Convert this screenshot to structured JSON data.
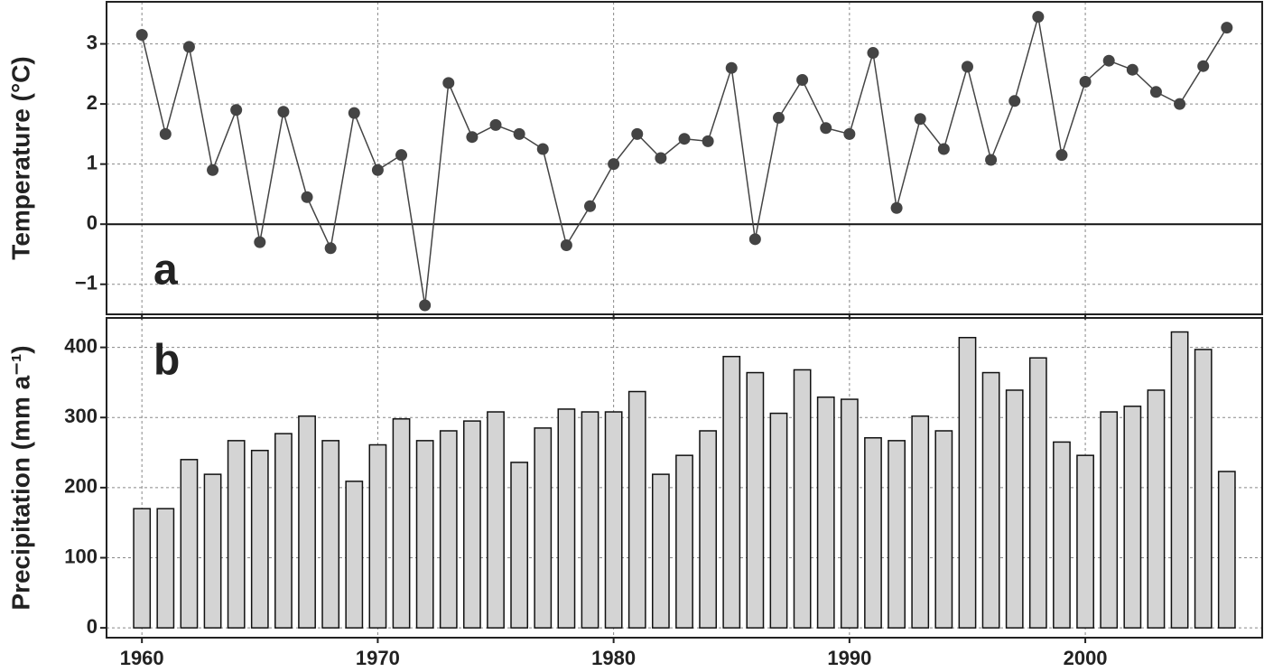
{
  "chart_data": [
    {
      "type": "line",
      "ylabel": "Temperature (°C)",
      "panel_label": "a",
      "color": "#444",
      "x": [
        1960,
        1961,
        1962,
        1963,
        1964,
        1965,
        1966,
        1967,
        1968,
        1969,
        1970,
        1971,
        1972,
        1973,
        1974,
        1975,
        1976,
        1977,
        1978,
        1979,
        1980,
        1981,
        1982,
        1983,
        1984,
        1985,
        1986,
        1987,
        1988,
        1989,
        1990,
        1991,
        1992,
        1993,
        1994,
        1995,
        1996,
        1997,
        1998,
        1999,
        2000,
        2001,
        2002,
        2003,
        2004,
        2005,
        2006
      ],
      "values": [
        3.15,
        1.5,
        2.95,
        0.9,
        1.9,
        -0.3,
        1.87,
        0.45,
        -0.4,
        1.85,
        0.9,
        1.15,
        -1.35,
        2.35,
        1.45,
        1.65,
        1.5,
        1.25,
        -0.35,
        0.3,
        1.0,
        1.5,
        1.1,
        1.42,
        1.38,
        2.6,
        -0.25,
        1.77,
        2.4,
        1.6,
        1.5,
        2.85,
        0.27,
        1.75,
        1.25,
        2.62,
        1.07,
        2.05,
        3.45,
        1.15,
        2.37,
        2.72,
        2.57,
        2.2,
        2.0,
        2.63,
        3.27
      ],
      "xlim": [
        1958.5,
        2007.5
      ],
      "xticks": [
        1960,
        1970,
        1980,
        1990,
        2000
      ],
      "ylim": [
        -1.5,
        3.7
      ],
      "yticks": [
        {
          "value": -1,
          "label": "−1"
        },
        0,
        1,
        2,
        3
      ],
      "grid": true
    },
    {
      "type": "bar",
      "ylabel": "Precipitation (mm a⁻¹)",
      "panel_label": "b",
      "color": "#d4d4d4",
      "x": [
        1960,
        1961,
        1962,
        1963,
        1964,
        1965,
        1966,
        1967,
        1968,
        1969,
        1970,
        1971,
        1972,
        1973,
        1974,
        1975,
        1976,
        1977,
        1978,
        1979,
        1980,
        1981,
        1982,
        1983,
        1984,
        1985,
        1986,
        1987,
        1988,
        1989,
        1990,
        1991,
        1992,
        1993,
        1994,
        1995,
        1996,
        1997,
        1998,
        1999,
        2000,
        2001,
        2002,
        2003,
        2004,
        2005,
        2006
      ],
      "values": [
        170,
        170,
        240,
        219,
        267,
        253,
        277,
        302,
        267,
        209,
        261,
        298,
        267,
        281,
        295,
        308,
        236,
        285,
        312,
        308,
        308,
        337,
        219,
        246,
        281,
        387,
        364,
        306,
        368,
        329,
        326,
        271,
        267,
        302,
        281,
        414,
        364,
        339,
        385,
        265,
        246,
        308,
        316,
        339,
        422,
        397,
        223
      ],
      "xlim": [
        1958.5,
        2007.5
      ],
      "xticks": [
        1960,
        1970,
        1980,
        1990,
        2000
      ],
      "ylim": [
        -14,
        442
      ],
      "yticks": [
        0,
        100,
        200,
        300,
        400
      ],
      "grid": true
    }
  ]
}
